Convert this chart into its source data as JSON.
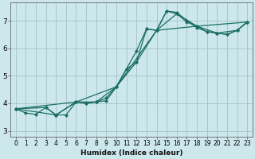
{
  "xlabel": "Humidex (Indice chaleur)",
  "bg_color": "#cde8ec",
  "grid_color": "#a8c8cc",
  "line_color": "#1a6e64",
  "xlim": [
    -0.5,
    23.5
  ],
  "ylim": [
    2.8,
    7.65
  ],
  "xticks": [
    0,
    1,
    2,
    3,
    4,
    5,
    6,
    7,
    8,
    9,
    10,
    11,
    12,
    13,
    14,
    15,
    16,
    17,
    18,
    19,
    20,
    21,
    22,
    23
  ],
  "yticks": [
    3,
    4,
    5,
    6,
    7
  ],
  "lines": [
    {
      "x": [
        0,
        1,
        2,
        3,
        4,
        5,
        6,
        7,
        8,
        9,
        10,
        11,
        12,
        13,
        14,
        15,
        16,
        17,
        18,
        19,
        20,
        21,
        22,
        23
      ],
      "y": [
        3.8,
        3.65,
        3.6,
        3.85,
        3.58,
        3.58,
        4.05,
        4.0,
        4.05,
        4.1,
        4.6,
        5.25,
        5.5,
        6.7,
        6.65,
        7.35,
        7.3,
        7.0,
        6.75,
        6.6,
        6.55,
        6.5,
        6.65,
        6.95
      ]
    },
    {
      "x": [
        0,
        3,
        4,
        6,
        7,
        8,
        9,
        10,
        11,
        12,
        13,
        14,
        15,
        16,
        17,
        18,
        19,
        20,
        21,
        22,
        23
      ],
      "y": [
        3.8,
        3.85,
        3.58,
        4.05,
        4.0,
        4.05,
        4.2,
        4.6,
        5.25,
        5.9,
        6.7,
        6.65,
        7.35,
        7.25,
        6.95,
        6.8,
        6.6,
        6.55,
        6.5,
        6.65,
        6.95
      ]
    },
    {
      "x": [
        0,
        4,
        6,
        8,
        10,
        12,
        14,
        16,
        18,
        20,
        22,
        23
      ],
      "y": [
        3.8,
        3.58,
        4.05,
        4.05,
        4.6,
        5.5,
        6.65,
        7.25,
        6.8,
        6.55,
        6.65,
        6.95
      ]
    },
    {
      "x": [
        0,
        6,
        10,
        14,
        18,
        23
      ],
      "y": [
        3.8,
        4.05,
        4.6,
        6.65,
        6.8,
        6.95
      ]
    }
  ]
}
